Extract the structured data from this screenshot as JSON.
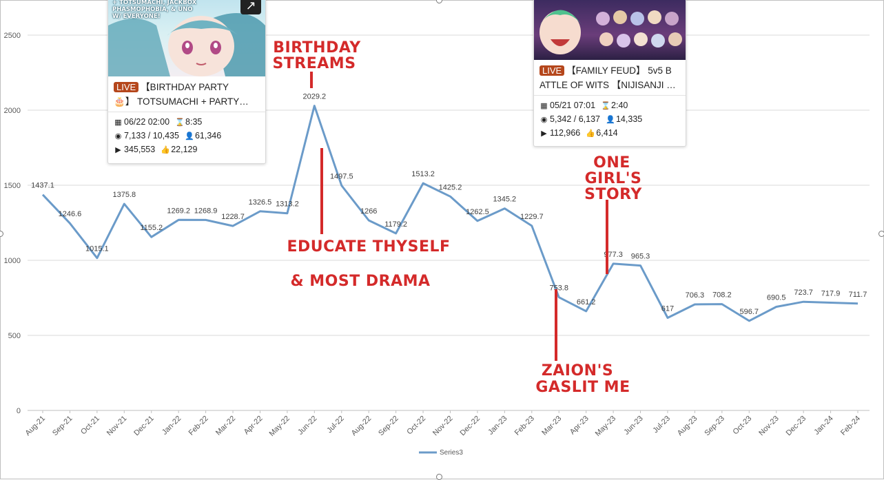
{
  "chart_data": {
    "type": "line",
    "categories": [
      "Aug-21",
      "Sep-21",
      "Oct-21",
      "Nov-21",
      "Dec-21",
      "Jan-22",
      "Feb-22",
      "Mar-22",
      "Apr-22",
      "May-22",
      "Jun-22",
      "Jul-22",
      "Aug-22",
      "Sep-22",
      "Oct-22",
      "Nov-22",
      "Dec-22",
      "Jan-23",
      "Feb-23",
      "Mar-23",
      "Apr-23",
      "May-23",
      "Jun-23",
      "Jul-23",
      "Aug-23",
      "Sep-23",
      "Oct-23",
      "Nov-23",
      "Dec-23",
      "Jan-24",
      "Feb-24"
    ],
    "series": [
      {
        "name": "Series3",
        "values": [
          1437.1,
          1246.6,
          1015.1,
          1375.8,
          1155.2,
          1269.2,
          1268.9,
          1228.7,
          1326.5,
          1313.2,
          2029.2,
          1497.5,
          1266,
          1179.2,
          1513.2,
          1425.2,
          1262.5,
          1345.2,
          1229.7,
          753.8,
          661.2,
          977.3,
          965.3,
          617,
          706.3,
          708.2,
          596.7,
          690.5,
          723.7,
          717.9,
          711.7
        ],
        "labels": [
          "1437.1",
          "1246.6",
          "1015.1",
          "1375.8",
          "1155.2",
          "1269.2",
          "1268.9",
          "1228.7",
          "1326.5",
          "1313.2",
          "2029.2",
          "1497.5",
          "1266",
          "1179.2",
          "1513.2",
          "1425.2",
          "1262.5",
          "1345.2",
          "1229.7",
          "753.8",
          "661.2",
          "977.3",
          "965.3",
          "617",
          "706.3",
          "708.2",
          "596.7",
          "690.5",
          "723.7",
          "717.9",
          "711.7"
        ]
      }
    ],
    "y_ticks": [
      "0",
      "500",
      "1000",
      "1500",
      "2000",
      "2500"
    ],
    "ylim": [
      0,
      2750
    ],
    "grid": true,
    "legend_position": "bottom",
    "line_color": "#6b9bc9",
    "annotations": [
      {
        "text": "BIRTHDAY",
        "category": "Jun-22"
      },
      {
        "text": "STREAMS",
        "category": "Jun-22"
      },
      {
        "text": "EDUCATE THYSELF",
        "category": "Jul-22"
      },
      {
        "text": "& MOST DRAMA",
        "category": "Jul-22"
      },
      {
        "text": "ZAION'S",
        "category": "Mar-23"
      },
      {
        "text": "GASLIT ME",
        "category": "Mar-23"
      },
      {
        "text": "ONE",
        "category": "May-23"
      },
      {
        "text": "GIRL'S",
        "category": "May-23"
      },
      {
        "text": "STORY",
        "category": "May-23"
      }
    ],
    "annotation_color": "#d42a2a"
  },
  "cards": [
    {
      "thumb_text": [
        "+ TOTSUMACHI, JACKBOX",
        "PHASMOPHOBIA, & UNO",
        "W/ EVERYONE!"
      ],
      "live": "LIVE",
      "title_line1": "【BIRTHDAY PARTY",
      "title_line2": "🎂】 TOTSUMACHI + PARTY…",
      "date": "06/22 02:00",
      "duration": "8:35",
      "views": "7,133 / 10,435",
      "subs": "61,346",
      "plays": "345,553",
      "likes": "22,129"
    },
    {
      "live": "LIVE",
      "title_line1": "【FAMILY FEUD】 5v5 B",
      "title_line2": "ATTLE OF WITS 【NIJISANJI …",
      "date": "05/21 07:01",
      "duration": "2:40",
      "views": "5,342 / 6,137",
      "subs": "14,335",
      "plays": "112,966",
      "likes": "6,414"
    }
  ]
}
